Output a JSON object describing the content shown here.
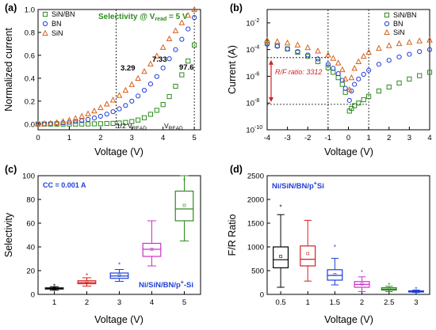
{
  "panel_labels": [
    "(a)",
    "(b)",
    "(c)",
    "(d)"
  ],
  "chart_data": [
    {
      "panel": "(a)",
      "type": "scatter",
      "xlabel": "Voltage (V)",
      "ylabel": "Normalized current",
      "xlim": [
        0,
        5.2
      ],
      "ylim": [
        -0.05,
        1.0
      ],
      "x_ticks": [
        "0",
        "1",
        "2",
        "3",
        "4",
        "5"
      ],
      "y_ticks": [
        "0.0",
        "0.2",
        "0.4",
        "0.6",
        "0.8",
        "1.0"
      ],
      "legend": [
        "SiN/BN",
        "BN",
        "SiN"
      ],
      "legend_position": "top-left",
      "annotation_title": "Selectivity @ V",
      "annotation_title_sub": "read",
      "annotation_title_rest": " = 5 V",
      "annotations": [
        "3.29",
        "7.33",
        "97.6"
      ],
      "vline_labels": [
        "1/2 V",
        "V"
      ],
      "vline_sub": "READ",
      "vlines_x": [
        2.5,
        5.0
      ],
      "colors": {
        "SiN/BN": "#2e8b1e",
        "BN": "#1f3fd6",
        "SiN": "#d9601a"
      },
      "series": [
        {
          "name": "SiN/BN",
          "x": [
            0,
            0.2,
            0.4,
            0.6,
            0.8,
            1.0,
            1.2,
            1.4,
            1.6,
            1.8,
            2.0,
            2.2,
            2.4,
            2.6,
            2.8,
            3.0,
            3.2,
            3.4,
            3.6,
            3.8,
            4.0,
            4.2,
            4.4,
            4.6,
            4.8,
            5.0
          ],
          "y": [
            0,
            0,
            0,
            0,
            0,
            0,
            0,
            0,
            0.001,
            0.002,
            0.003,
            0.005,
            0.006,
            0.009,
            0.014,
            0.022,
            0.035,
            0.055,
            0.085,
            0.12,
            0.17,
            0.24,
            0.33,
            0.43,
            0.55,
            0.69
          ]
        },
        {
          "name": "BN",
          "x": [
            0,
            0.2,
            0.4,
            0.6,
            0.8,
            1.0,
            1.2,
            1.4,
            1.6,
            1.8,
            2.0,
            2.2,
            2.4,
            2.6,
            2.8,
            3.0,
            3.2,
            3.4,
            3.6,
            3.8,
            4.0,
            4.2,
            4.4,
            4.6,
            4.8,
            5.0
          ],
          "y": [
            0,
            0.002,
            0.004,
            0.007,
            0.011,
            0.016,
            0.022,
            0.03,
            0.04,
            0.053,
            0.068,
            0.087,
            0.108,
            0.133,
            0.162,
            0.2,
            0.245,
            0.295,
            0.35,
            0.415,
            0.49,
            0.57,
            0.65,
            0.74,
            0.83,
            0.93
          ]
        },
        {
          "name": "SiN",
          "x": [
            0,
            0.2,
            0.4,
            0.6,
            0.8,
            1.0,
            1.2,
            1.4,
            1.6,
            1.8,
            2.0,
            2.2,
            2.4,
            2.6,
            2.8,
            3.0,
            3.2,
            3.4,
            3.6,
            3.8,
            4.0,
            4.2,
            4.4,
            4.6,
            4.8,
            5.0
          ],
          "y": [
            0,
            0.003,
            0.007,
            0.013,
            0.022,
            0.034,
            0.05,
            0.068,
            0.09,
            0.115,
            0.143,
            0.175,
            0.21,
            0.25,
            0.295,
            0.345,
            0.4,
            0.46,
            0.525,
            0.595,
            0.67,
            0.745,
            0.815,
            0.885,
            0.95,
            1.0
          ]
        }
      ]
    },
    {
      "panel": "(b)",
      "type": "scatter",
      "yscale": "log",
      "xlabel": "Voltage (V)",
      "ylabel": "Current (A)",
      "xlim": [
        -4,
        4
      ],
      "ylim_exp": [
        -10,
        -1
      ],
      "x_ticks": [
        "-4",
        "-3",
        "-2",
        "-1",
        "0",
        "1",
        "2",
        "3",
        "4"
      ],
      "y_tick_base": "10",
      "y_tick_exps": [
        "-10",
        "-8",
        "-6",
        "-4",
        "-2"
      ],
      "legend": [
        "SiN/BN",
        "BN",
        "SiN"
      ],
      "legend_position": "top-right",
      "annotation": "R/F ratio: 3312",
      "vlines_x": [
        -1,
        1
      ],
      "colors": {
        "SiN/BN": "#2e8b1e",
        "BN": "#1f3fd6",
        "SiN": "#d9601a"
      },
      "series": [
        {
          "name": "SiN/BN",
          "x": [
            -4,
            -3.5,
            -3,
            -2.5,
            -2,
            -1.5,
            -1,
            -0.75,
            -0.5,
            -0.3,
            -0.15,
            0.05,
            0.15,
            0.3,
            0.5,
            0.75,
            1,
            1.5,
            2,
            2.5,
            3,
            3.5,
            4
          ],
          "y_log10": [
            -3.5,
            -3.7,
            -3.95,
            -4.2,
            -4.5,
            -4.9,
            -5.35,
            -5.7,
            -6.1,
            -6.6,
            -7.2,
            -8.6,
            -8.4,
            -8.2,
            -8.0,
            -7.75,
            -7.5,
            -7.1,
            -6.8,
            -6.5,
            -6.2,
            -5.95,
            -5.7
          ]
        },
        {
          "name": "BN",
          "x": [
            -4,
            -3.5,
            -3,
            -2.5,
            -2,
            -1.5,
            -1,
            -0.75,
            -0.5,
            -0.3,
            -0.15,
            0.05,
            0.15,
            0.3,
            0.5,
            0.75,
            1,
            1.5,
            2,
            2.5,
            3,
            3.5,
            4
          ],
          "y_log10": [
            -3.6,
            -3.75,
            -3.95,
            -4.15,
            -4.4,
            -4.7,
            -5.1,
            -5.4,
            -5.8,
            -6.3,
            -6.9,
            -7.8,
            -7.1,
            -6.6,
            -6.2,
            -5.85,
            -5.55,
            -5.1,
            -4.8,
            -4.55,
            -4.35,
            -4.15,
            -4.0
          ]
        },
        {
          "name": "SiN",
          "x": [
            -4,
            -3.5,
            -3,
            -2.5,
            -2,
            -1.5,
            -1,
            -0.75,
            -0.5,
            -0.3,
            -0.15,
            0.05,
            0.15,
            0.3,
            0.5,
            0.75,
            1,
            1.5,
            2,
            2.5,
            3,
            3.5,
            4
          ],
          "y_log10": [
            -3.3,
            -3.4,
            -3.5,
            -3.65,
            -3.85,
            -4.1,
            -4.4,
            -4.65,
            -5.0,
            -5.5,
            -6.2,
            -7.0,
            -6.1,
            -5.4,
            -4.9,
            -4.5,
            -4.2,
            -3.9,
            -3.7,
            -3.55,
            -3.45,
            -3.35,
            -3.28
          ]
        }
      ]
    },
    {
      "panel": "(c)",
      "type": "box",
      "xlabel": "Voltage (V)",
      "ylabel": "Selectivity",
      "ylim": [
        0,
        100
      ],
      "x_ticks": [
        "1",
        "2",
        "3",
        "4",
        "5"
      ],
      "y_ticks": [
        "0",
        "20",
        "40",
        "60",
        "80",
        "100"
      ],
      "annotation": "CC = 0.001 A",
      "device": "Ni/SiN/BN/p",
      "device_sup": "+",
      "device_rest": "-Si",
      "categories": [
        "1",
        "2",
        "3",
        "4",
        "5"
      ],
      "colors": [
        "#000000",
        "#d42020",
        "#1f3fd6",
        "#c832c8",
        "#2e8b1e"
      ],
      "boxes": [
        {
          "whislo": 3.5,
          "q1": 4.5,
          "med": 5,
          "q3": 5.5,
          "whishi": 6.5,
          "mean": 5,
          "outlier": 7
        },
        {
          "whislo": 7,
          "q1": 9,
          "med": 10,
          "q3": 11.5,
          "whishi": 14,
          "mean": 10.5,
          "outlier": 16
        },
        {
          "whislo": 11,
          "q1": 13.5,
          "med": 15.5,
          "q3": 18,
          "whishi": 21,
          "mean": 16,
          "outlier": 25
        },
        {
          "whislo": 24,
          "q1": 32,
          "med": 38,
          "q3": 43,
          "whishi": 62,
          "mean": 38,
          "outlier": null
        },
        {
          "whislo": 45,
          "q1": 62,
          "med": 72,
          "q3": 87,
          "whishi": 103,
          "mean": 75,
          "outlier": 96
        }
      ]
    },
    {
      "panel": "(d)",
      "type": "box",
      "xlabel": "Voltage (V)",
      "ylabel": "F/R Ratio",
      "ylim": [
        0,
        2500
      ],
      "x_ticks": [
        "0.5",
        "1",
        "1.5",
        "2",
        "2.5",
        "3"
      ],
      "y_ticks": [
        "0",
        "500",
        "1000",
        "1500",
        "2000",
        "2500"
      ],
      "device": "Ni/SiN/BN/p",
      "device_sup": "+",
      "device_rest": "Si",
      "categories": [
        "0.5",
        "1",
        "1.5",
        "2",
        "2.5",
        "3"
      ],
      "colors": [
        "#000000",
        "#d42020",
        "#1f3fd6",
        "#c832c8",
        "#2e8b1e",
        "#1f3fd6"
      ],
      "boxes": [
        {
          "whislo": 150,
          "q1": 560,
          "med": 730,
          "q3": 1000,
          "whishi": 1680,
          "mean": 800,
          "outlier": 1840
        },
        {
          "whislo": 280,
          "q1": 600,
          "med": 740,
          "q3": 1020,
          "whishi": 1560,
          "mean": 860,
          "outlier": null
        },
        {
          "whislo": 200,
          "q1": 300,
          "med": 400,
          "q3": 520,
          "whishi": 760,
          "mean": 420,
          "outlier": 1000
        },
        {
          "whislo": 60,
          "q1": 150,
          "med": 210,
          "q3": 270,
          "whishi": 370,
          "mean": 220,
          "outlier": 470
        },
        {
          "whislo": 60,
          "q1": 90,
          "med": 110,
          "q3": 140,
          "whishi": 170,
          "mean": 120,
          "outlier": 200
        },
        {
          "whislo": 40,
          "q1": 55,
          "med": 65,
          "q3": 75,
          "whishi": 90,
          "mean": 65,
          "outlier": 110
        }
      ]
    }
  ]
}
